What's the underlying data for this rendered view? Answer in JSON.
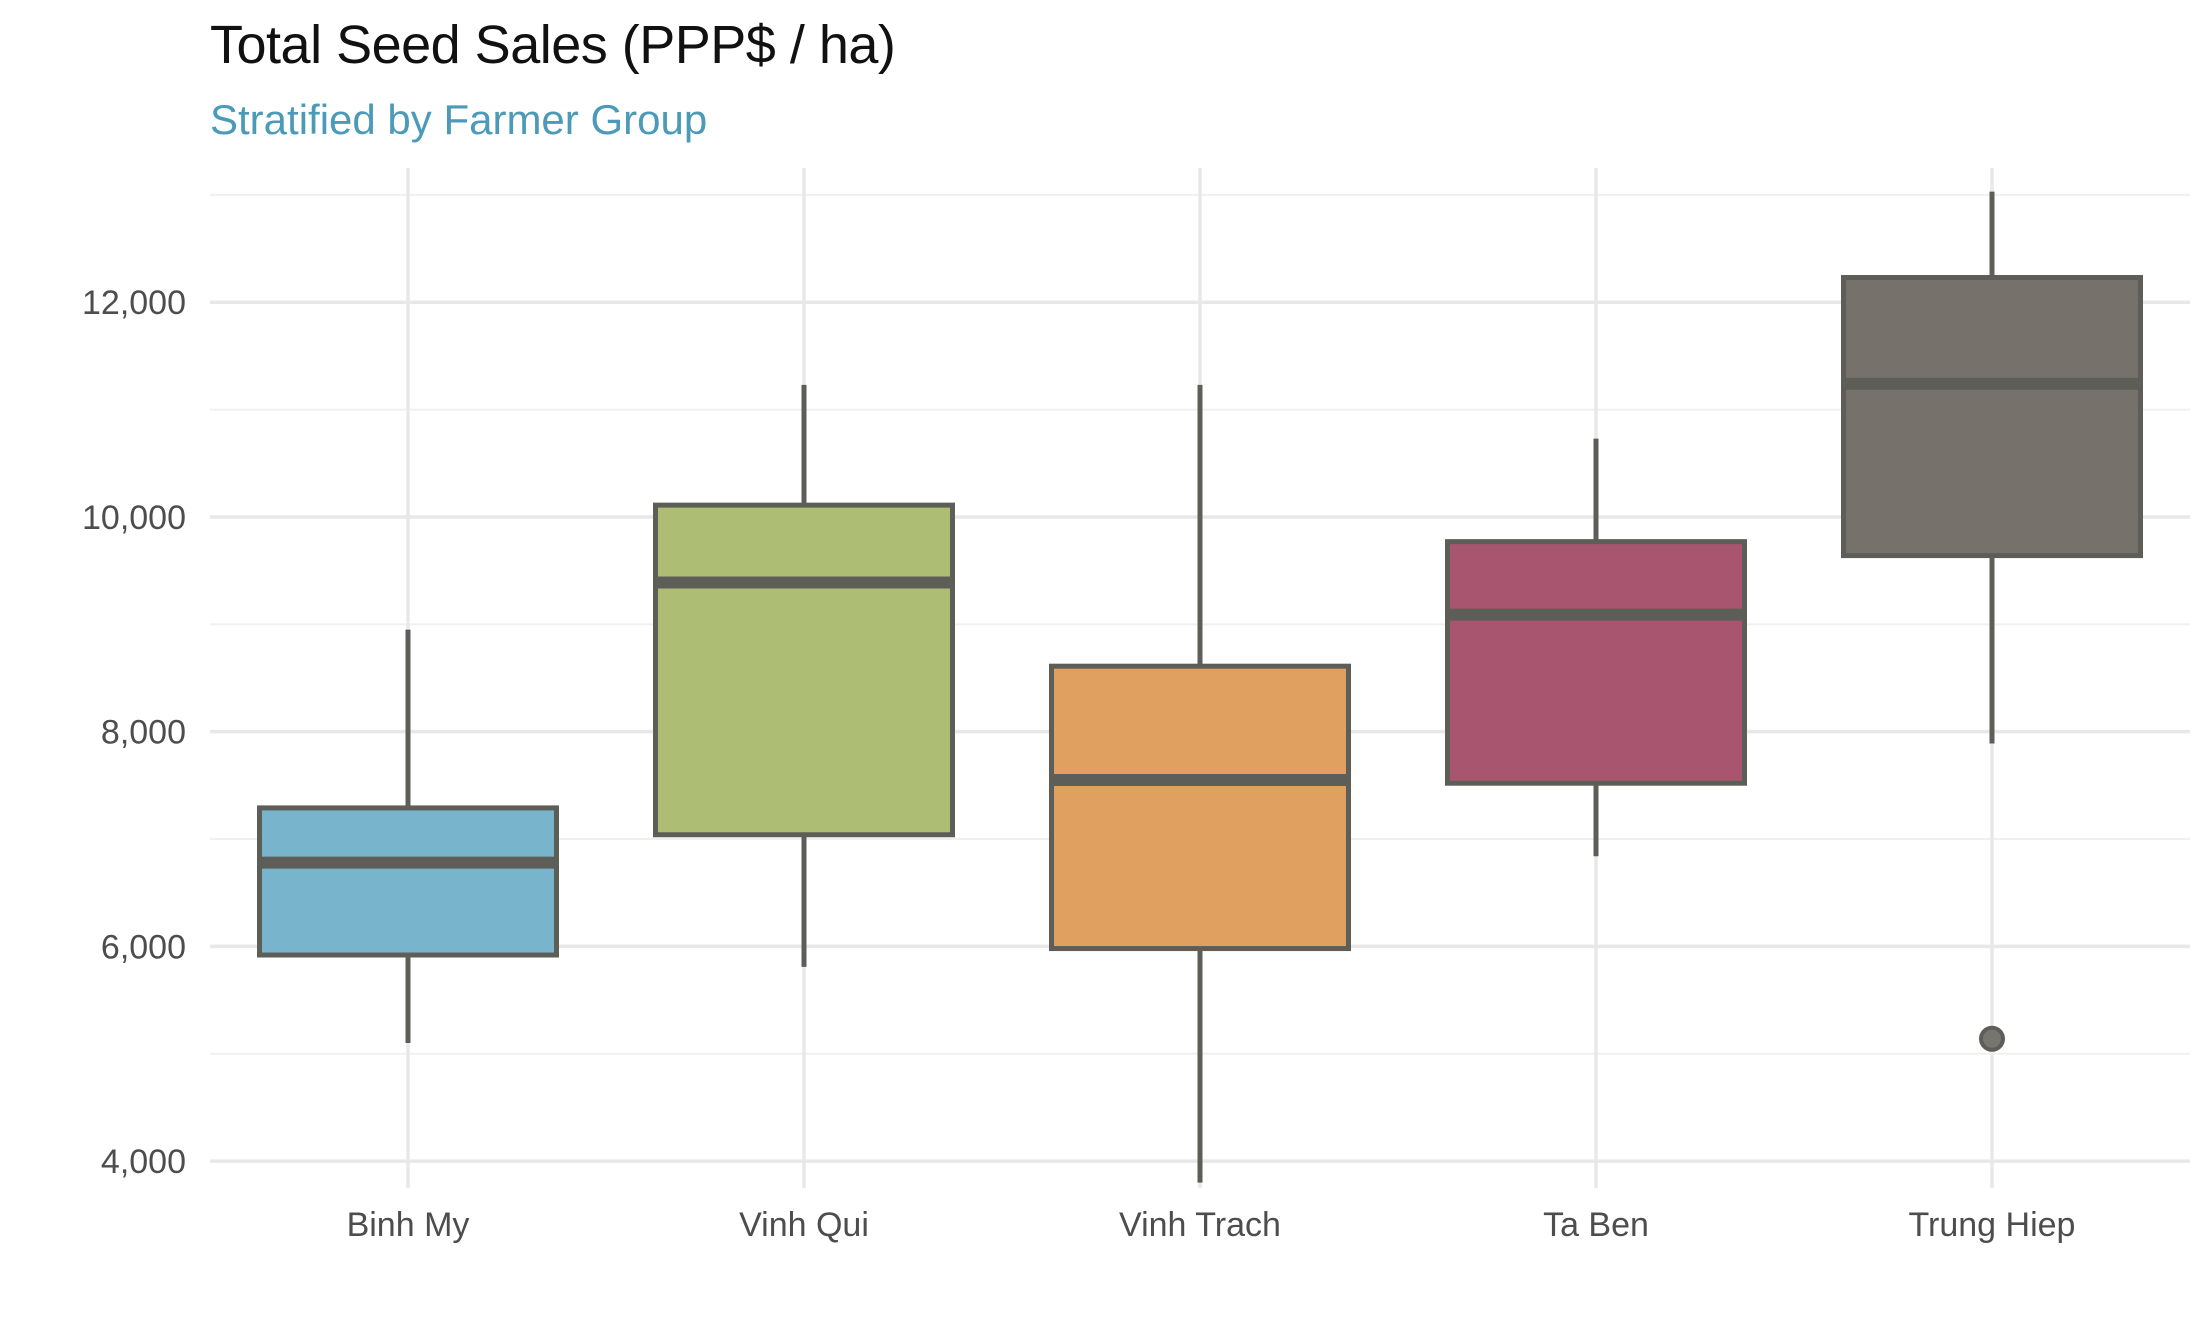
{
  "chart_data": {
    "type": "boxplot",
    "title": "Total Seed Sales (PPP$ / ha)",
    "subtitle": "Stratified by Farmer Group",
    "xlabel": "",
    "ylabel": "",
    "ylim": [
      3750,
      13250
    ],
    "yticks": [
      4000,
      6000,
      8000,
      10000,
      12000
    ],
    "ytick_labels": [
      "4,000",
      "6,000",
      "8,000",
      "10,000",
      "12,000"
    ],
    "grid": true,
    "legend": "none",
    "categories": [
      "Binh My",
      "Vinh Qui",
      "Vinh Trach",
      "Ta Ben",
      "Trung Hiep"
    ],
    "boxes": [
      {
        "name": "Binh My",
        "whisker_low": 5100,
        "q1": 5920,
        "median": 6780,
        "q3": 7290,
        "whisker_high": 8950,
        "outliers": [],
        "color": "#78b4cc"
      },
      {
        "name": "Vinh Qui",
        "whisker_low": 5810,
        "q1": 7040,
        "median": 9390,
        "q3": 10110,
        "whisker_high": 11230,
        "outliers": [],
        "color": "#adbd73"
      },
      {
        "name": "Vinh Trach",
        "whisker_low": 3800,
        "q1": 5980,
        "median": 7550,
        "q3": 8610,
        "whisker_high": 11230,
        "outliers": [],
        "color": "#e0a05f"
      },
      {
        "name": "Ta Ben",
        "whisker_low": 6840,
        "q1": 7520,
        "median": 9090,
        "q3": 9770,
        "whisker_high": 10730,
        "outliers": [],
        "color": "#a8566f"
      },
      {
        "name": "Trung Hiep",
        "whisker_low": 7890,
        "q1": 9640,
        "median": 11240,
        "q3": 12230,
        "whisker_high": 13030,
        "outliers": [
          5140
        ],
        "color": "#76716b"
      }
    ]
  }
}
